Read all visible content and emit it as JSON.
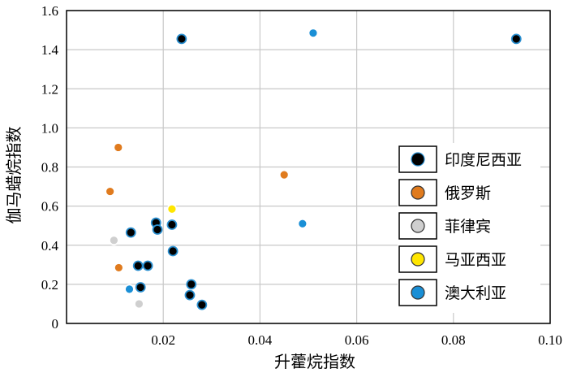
{
  "chart_data": {
    "type": "scatter",
    "xlabel": "升藿烷指数",
    "ylabel": "伽马蜡烷指数",
    "xlim": [
      0,
      0.1
    ],
    "ylim": [
      0,
      1.6
    ],
    "x_ticks": [
      "0.02",
      "0.04",
      "0.06",
      "0.08",
      "0.10"
    ],
    "y_ticks": [
      "0",
      "0.2",
      "0.4",
      "0.6",
      "0.8",
      "1.0",
      "1.2",
      "1.4",
      "1.6"
    ],
    "grid": true,
    "legend_position": "right",
    "series": [
      {
        "name": "印度尼西亚",
        "color": "#000000",
        "edge": "#2a8fd0",
        "points": [
          [
            0.0238,
            1.455
          ],
          [
            0.093,
            1.455
          ],
          [
            0.0133,
            0.465
          ],
          [
            0.0185,
            0.515
          ],
          [
            0.0188,
            0.48
          ],
          [
            0.0218,
            0.505
          ],
          [
            0.022,
            0.37
          ],
          [
            0.0148,
            0.295
          ],
          [
            0.0168,
            0.295
          ],
          [
            0.0258,
            0.2
          ],
          [
            0.0255,
            0.145
          ],
          [
            0.0153,
            0.185
          ],
          [
            0.028,
            0.095
          ]
        ]
      },
      {
        "name": "俄罗斯",
        "color": "#e07b1e",
        "edge": "#ffffff",
        "points": [
          [
            0.0107,
            0.9
          ],
          [
            0.009,
            0.675
          ],
          [
            0.045,
            0.76
          ],
          [
            0.0108,
            0.285
          ]
        ]
      },
      {
        "name": "菲律宾",
        "color": "#cfcfcf",
        "edge": "#ffffff",
        "points": [
          [
            0.0098,
            0.425
          ],
          [
            0.015,
            0.1
          ]
        ]
      },
      {
        "name": "马亚西亚",
        "color": "#ffe600",
        "edge": "#ffffff",
        "points": [
          [
            0.0218,
            0.585
          ]
        ]
      },
      {
        "name": "澳大利亚",
        "color": "#1a8fd6",
        "edge": "#ffffff",
        "points": [
          [
            0.051,
            1.485
          ],
          [
            0.0488,
            0.51
          ],
          [
            0.013,
            0.175
          ]
        ]
      }
    ]
  }
}
